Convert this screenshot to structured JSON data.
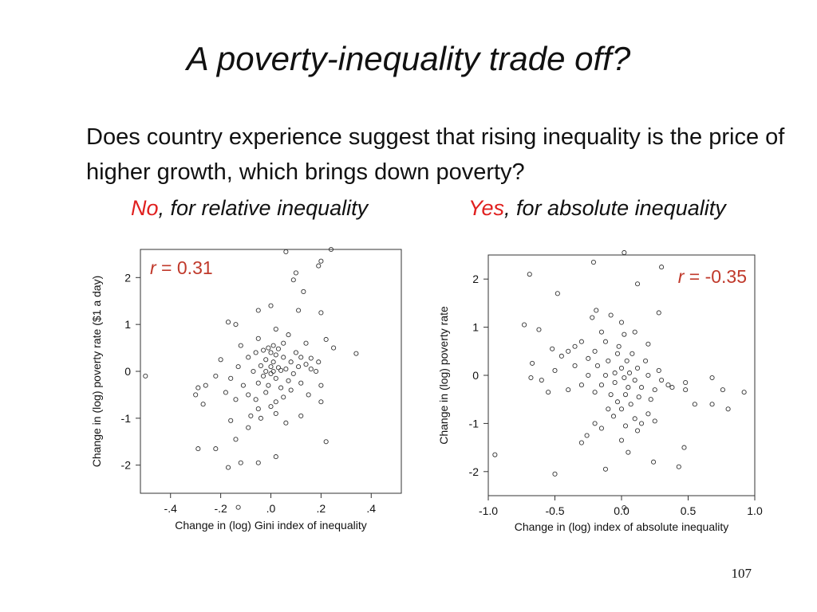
{
  "slide": {
    "title": "A poverty-inequality trade off?",
    "question": "Does country experience suggest that rising inequality is the price of higher growth, which brings down poverty?",
    "left_subtitle_keyword": "No",
    "left_subtitle_rest": ", for relative inequality",
    "right_subtitle_keyword": "Yes",
    "right_subtitle_rest": ", for absolute inequality",
    "page_number": "107"
  },
  "colors": {
    "accent": "#e0201f",
    "annotation": "#c0392b",
    "points": "#333333"
  },
  "chart_data": [
    {
      "type": "scatter",
      "title": "",
      "xlabel": "Change in (log) Gini index of inequality",
      "ylabel": "Change in (log) poverty rate ($1 a day)",
      "xlim": [
        -0.52,
        0.52
      ],
      "ylim": [
        -2.6,
        2.6
      ],
      "xticks": [
        -0.4,
        -0.2,
        0.0,
        0.2,
        0.4
      ],
      "xtick_labels": [
        "-.4",
        "-.2",
        ".0",
        ".2",
        ".4"
      ],
      "yticks": [
        2,
        1,
        0,
        -1,
        -2
      ],
      "ytick_labels": [
        "2",
        "1",
        "0",
        "-1",
        "-2"
      ],
      "annotation": "r = 0.31",
      "annotation_prefix": "r",
      "annotation_rest": " = 0.31",
      "points": [
        [
          0.06,
          2.55
        ],
        [
          0.24,
          2.6
        ],
        [
          0.2,
          2.35
        ],
        [
          0.19,
          2.25
        ],
        [
          0.1,
          2.1
        ],
        [
          0.09,
          1.95
        ],
        [
          0.13,
          1.7
        ],
        [
          0.0,
          1.4
        ],
        [
          -0.05,
          1.3
        ],
        [
          0.11,
          1.3
        ],
        [
          0.2,
          1.25
        ],
        [
          -0.17,
          1.05
        ],
        [
          -0.14,
          1.0
        ],
        [
          0.02,
          0.9
        ],
        [
          0.07,
          0.78
        ],
        [
          -0.05,
          0.7
        ],
        [
          0.22,
          0.68
        ],
        [
          0.05,
          0.6
        ],
        [
          -0.12,
          0.55
        ],
        [
          0.01,
          0.55
        ],
        [
          -0.01,
          0.5
        ],
        [
          0.03,
          0.48
        ],
        [
          -0.03,
          0.45
        ],
        [
          0.25,
          0.5
        ],
        [
          0.34,
          0.38
        ],
        [
          -0.06,
          0.4
        ],
        [
          0.0,
          0.4
        ],
        [
          0.02,
          0.35
        ],
        [
          -0.09,
          0.3
        ],
        [
          0.05,
          0.3
        ],
        [
          0.12,
          0.3
        ],
        [
          0.16,
          0.28
        ],
        [
          -0.02,
          0.25
        ],
        [
          0.01,
          0.2
        ],
        [
          0.08,
          0.2
        ],
        [
          0.14,
          0.15
        ],
        [
          0.19,
          0.2
        ],
        [
          -0.13,
          0.1
        ],
        [
          -0.04,
          0.12
        ],
        [
          0.0,
          0.1
        ],
        [
          0.03,
          0.08
        ],
        [
          0.06,
          0.05
        ],
        [
          0.11,
          0.1
        ],
        [
          -0.07,
          0.0
        ],
        [
          -0.02,
          0.0
        ],
        [
          0.01,
          0.0
        ],
        [
          0.04,
          0.02
        ],
        [
          0.09,
          -0.05
        ],
        [
          0.16,
          0.05
        ],
        [
          -0.22,
          -0.1
        ],
        [
          -0.16,
          -0.15
        ],
        [
          -0.03,
          -0.1
        ],
        [
          0.0,
          -0.05
        ],
        [
          0.02,
          -0.15
        ],
        [
          0.07,
          -0.2
        ],
        [
          0.12,
          -0.25
        ],
        [
          0.2,
          -0.3
        ],
        [
          -0.26,
          -0.3
        ],
        [
          -0.11,
          -0.3
        ],
        [
          -0.05,
          -0.25
        ],
        [
          -0.01,
          -0.3
        ],
        [
          0.04,
          -0.35
        ],
        [
          0.08,
          -0.4
        ],
        [
          -0.29,
          -0.35
        ],
        [
          -0.18,
          -0.45
        ],
        [
          -0.09,
          -0.5
        ],
        [
          -0.02,
          -0.45
        ],
        [
          0.05,
          -0.55
        ],
        [
          0.15,
          -0.5
        ],
        [
          -0.3,
          -0.5
        ],
        [
          -0.14,
          -0.6
        ],
        [
          -0.06,
          -0.6
        ],
        [
          0.02,
          -0.65
        ],
        [
          0.2,
          -0.65
        ],
        [
          -0.27,
          -0.7
        ],
        [
          -0.05,
          -0.8
        ],
        [
          0.0,
          -0.75
        ],
        [
          0.12,
          -0.95
        ],
        [
          -0.04,
          -1.0
        ],
        [
          -0.16,
          -1.05
        ],
        [
          -0.09,
          -1.2
        ],
        [
          -0.14,
          -1.45
        ],
        [
          0.22,
          -1.5
        ],
        [
          -0.29,
          -1.65
        ],
        [
          -0.22,
          -1.65
        ],
        [
          0.02,
          -1.82
        ],
        [
          -0.12,
          -1.95
        ],
        [
          -0.05,
          -1.95
        ],
        [
          -0.17,
          -2.05
        ],
        [
          -0.13,
          -2.9
        ],
        [
          0.02,
          -0.9
        ],
        [
          -0.2,
          0.25
        ],
        [
          0.18,
          0.0
        ],
        [
          -0.5,
          -0.1
        ],
        [
          0.1,
          0.4
        ],
        [
          -0.08,
          -0.95
        ],
        [
          0.06,
          -1.1
        ],
        [
          0.14,
          0.6
        ]
      ]
    },
    {
      "type": "scatter",
      "title": "",
      "xlabel": "Change in (log) index of absolute inequality",
      "ylabel": "Change in (log) poverty rate",
      "xlim": [
        -1.0,
        1.0
      ],
      "ylim": [
        -2.5,
        2.5
      ],
      "xticks": [
        -1.0,
        -0.5,
        0.0,
        0.5,
        1.0
      ],
      "xtick_labels": [
        "-1.0",
        "-0.5",
        "0.0",
        "0.5",
        "1.0"
      ],
      "yticks": [
        2,
        1,
        0,
        -1,
        -2
      ],
      "ytick_labels": [
        "2",
        "1",
        "0",
        "-1",
        "-2"
      ],
      "annotation": "r = -0.35",
      "annotation_prefix": "r",
      "annotation_rest": " = -0.35",
      "points": [
        [
          0.02,
          2.55
        ],
        [
          -0.21,
          2.35
        ],
        [
          0.3,
          2.25
        ],
        [
          -0.69,
          2.1
        ],
        [
          0.12,
          1.9
        ],
        [
          -0.48,
          1.7
        ],
        [
          -0.19,
          1.35
        ],
        [
          0.28,
          1.3
        ],
        [
          -0.22,
          1.2
        ],
        [
          -0.08,
          1.25
        ],
        [
          0.0,
          1.1
        ],
        [
          -0.73,
          1.05
        ],
        [
          -0.62,
          0.95
        ],
        [
          0.02,
          0.85
        ],
        [
          -0.3,
          0.7
        ],
        [
          -0.12,
          0.7
        ],
        [
          0.2,
          0.65
        ],
        [
          -0.52,
          0.55
        ],
        [
          -0.4,
          0.5
        ],
        [
          -0.2,
          0.5
        ],
        [
          -0.03,
          0.45
        ],
        [
          0.08,
          0.45
        ],
        [
          -0.45,
          0.4
        ],
        [
          -0.25,
          0.35
        ],
        [
          -0.1,
          0.3
        ],
        [
          0.04,
          0.3
        ],
        [
          0.18,
          0.3
        ],
        [
          -0.67,
          0.25
        ],
        [
          -0.35,
          0.2
        ],
        [
          -0.18,
          0.2
        ],
        [
          0.0,
          0.15
        ],
        [
          0.12,
          0.15
        ],
        [
          0.28,
          0.1
        ],
        [
          -0.05,
          0.05
        ],
        [
          0.06,
          0.05
        ],
        [
          0.2,
          0.0
        ],
        [
          -0.5,
          0.1
        ],
        [
          -0.25,
          0.0
        ],
        [
          -0.12,
          0.0
        ],
        [
          0.02,
          -0.05
        ],
        [
          0.1,
          -0.1
        ],
        [
          0.35,
          -0.2
        ],
        [
          0.68,
          -0.05
        ],
        [
          0.48,
          -0.15
        ],
        [
          -0.68,
          -0.05
        ],
        [
          -0.3,
          -0.2
        ],
        [
          -0.15,
          -0.2
        ],
        [
          -0.05,
          -0.15
        ],
        [
          0.05,
          -0.25
        ],
        [
          0.15,
          -0.25
        ],
        [
          0.25,
          -0.3
        ],
        [
          0.48,
          -0.3
        ],
        [
          0.76,
          -0.3
        ],
        [
          0.92,
          -0.35
        ],
        [
          -0.55,
          -0.35
        ],
        [
          -0.4,
          -0.3
        ],
        [
          -0.2,
          -0.35
        ],
        [
          -0.08,
          -0.4
        ],
        [
          0.03,
          -0.4
        ],
        [
          0.13,
          -0.45
        ],
        [
          0.22,
          -0.5
        ],
        [
          -0.03,
          -0.55
        ],
        [
          0.07,
          -0.6
        ],
        [
          0.55,
          -0.6
        ],
        [
          0.68,
          -0.6
        ],
        [
          0.8,
          -0.7
        ],
        [
          -0.1,
          -0.7
        ],
        [
          0.0,
          -0.7
        ],
        [
          0.2,
          -0.8
        ],
        [
          -0.06,
          -0.85
        ],
        [
          0.1,
          -0.9
        ],
        [
          0.25,
          -0.95
        ],
        [
          -0.2,
          -1.0
        ],
        [
          0.15,
          -1.0
        ],
        [
          0.03,
          -1.05
        ],
        [
          -0.15,
          -1.1
        ],
        [
          0.12,
          -1.15
        ],
        [
          -0.26,
          -1.25
        ],
        [
          0.0,
          -1.35
        ],
        [
          -0.3,
          -1.4
        ],
        [
          0.47,
          -1.5
        ],
        [
          -0.95,
          -1.65
        ],
        [
          0.05,
          -1.6
        ],
        [
          0.24,
          -1.8
        ],
        [
          0.43,
          -1.9
        ],
        [
          -0.12,
          -1.95
        ],
        [
          -0.5,
          -2.05
        ],
        [
          0.02,
          -2.75
        ],
        [
          0.38,
          -0.25
        ],
        [
          -0.35,
          0.6
        ],
        [
          0.1,
          0.9
        ],
        [
          -0.6,
          -0.1
        ],
        [
          0.3,
          -0.1
        ],
        [
          -0.02,
          0.6
        ],
        [
          -0.15,
          0.9
        ]
      ]
    }
  ]
}
